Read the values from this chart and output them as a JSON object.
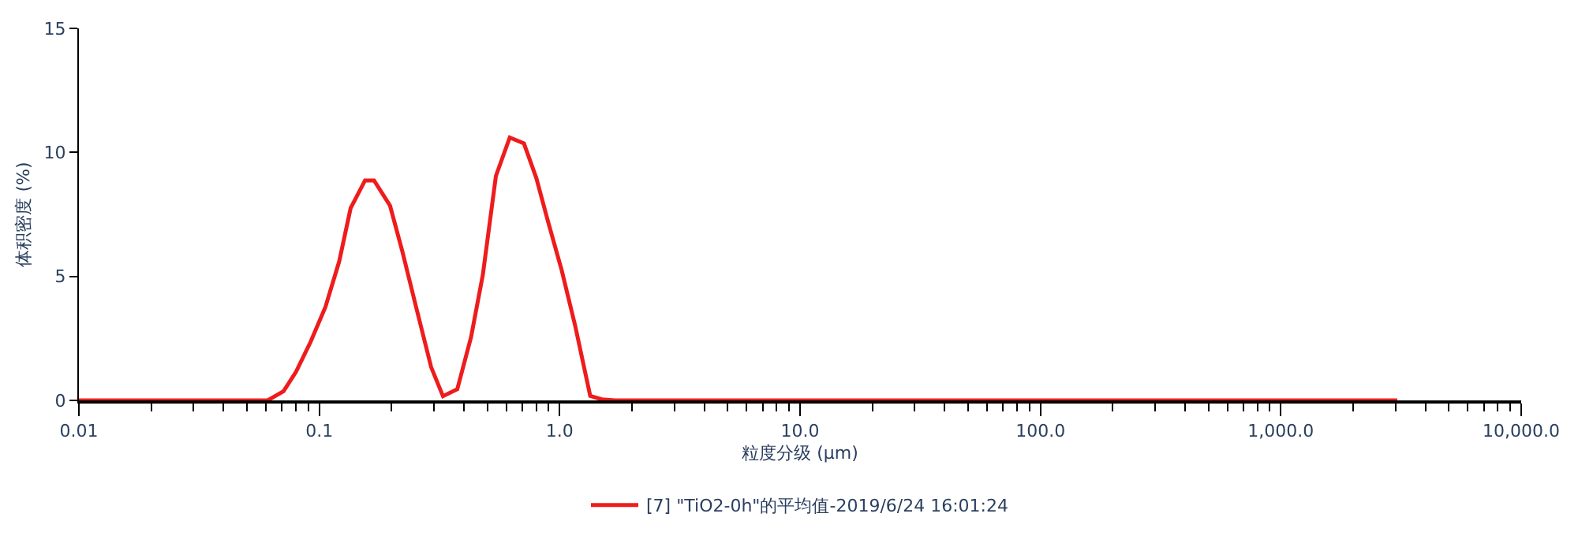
{
  "chart_data": {
    "type": "line",
    "xlabel": "粒度分级 (μm)",
    "ylabel": "体积密度 (%)",
    "log": "x",
    "xlim": [
      0.01,
      10000
    ],
    "xticks": [
      {
        "value": 0.01,
        "label": "0.01"
      },
      {
        "value": 0.1,
        "label": "0.1"
      },
      {
        "value": 1,
        "label": "1.0"
      },
      {
        "value": 10,
        "label": "10.0"
      },
      {
        "value": 100,
        "label": "100.0"
      },
      {
        "value": 1000,
        "label": "1,000.0"
      },
      {
        "value": 10000,
        "label": "10,000.0"
      }
    ],
    "ylim": [
      0,
      15
    ],
    "yticks": [
      0,
      5,
      10,
      15
    ],
    "legend": "bottom",
    "marker": "none",
    "line_style": "solid",
    "series": [
      {
        "name": "[7] \"TiO2-0h\"的平均值-2019/6/24 16:01:24",
        "color": "#ee1c1c",
        "x": [
          0.01,
          0.02,
          0.04,
          0.055,
          0.061,
          0.071,
          0.08,
          0.092,
          0.106,
          0.121,
          0.135,
          0.155,
          0.169,
          0.197,
          0.222,
          0.253,
          0.292,
          0.327,
          0.375,
          0.428,
          0.479,
          0.543,
          0.62,
          0.71,
          0.8,
          0.89,
          1.02,
          1.16,
          1.34,
          1.5,
          1.7,
          3,
          10,
          100,
          1000,
          3050
        ],
        "values": [
          0,
          0,
          0,
          0,
          0,
          0.37,
          1.15,
          2.36,
          3.76,
          5.6,
          7.75,
          8.87,
          8.87,
          7.85,
          5.98,
          3.75,
          1.34,
          0.17,
          0.45,
          2.55,
          5.06,
          9.05,
          10.6,
          10.36,
          8.96,
          7.29,
          5.24,
          3.01,
          0.18,
          0.04,
          0,
          0,
          0,
          0,
          0,
          0
        ]
      }
    ]
  }
}
